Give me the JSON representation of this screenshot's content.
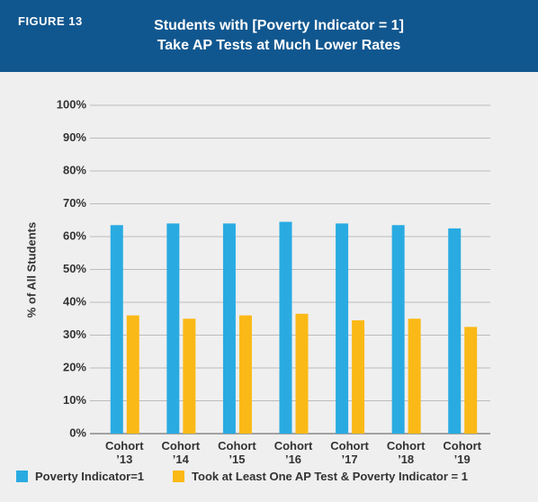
{
  "figure_label": "FIGURE 13",
  "chart_data": {
    "type": "bar",
    "title": [
      "Students with [Poverty Indicator = 1]",
      "Take AP Tests at Much Lower Rates"
    ],
    "y_label": "% of All Students",
    "categories": [
      "Cohort ’13",
      "Cohort ’14",
      "Cohort ’15",
      "Cohort ’16",
      "Cohort ’17",
      "Cohort ’18",
      "Cohort ’19"
    ],
    "series": [
      {
        "name": "Poverty Indicator=1",
        "color": "#29abe2",
        "values": [
          63.5,
          64,
          64,
          64.5,
          64,
          63.5,
          62.5
        ]
      },
      {
        "name": "Took at Least One AP Test & Poverty Indicator = 1",
        "color": "#fbb917",
        "values": [
          36,
          35,
          36,
          36.5,
          34.5,
          35,
          32.5
        ]
      }
    ],
    "ylim": [
      0,
      100
    ],
    "yticks": [
      {
        "value": 0,
        "label": "0%"
      },
      {
        "value": 10,
        "label": "10%"
      },
      {
        "value": 20,
        "label": "20%"
      },
      {
        "value": 30,
        "label": "30%"
      },
      {
        "value": 40,
        "label": "40%"
      },
      {
        "value": 50,
        "label": "50%"
      },
      {
        "value": 60,
        "label": "60%"
      },
      {
        "value": 70,
        "label": "70%"
      },
      {
        "value": 80,
        "label": "80%"
      },
      {
        "value": 90,
        "label": "90%"
      },
      {
        "value": 100,
        "label": "100%"
      }
    ],
    "grid": true
  }
}
